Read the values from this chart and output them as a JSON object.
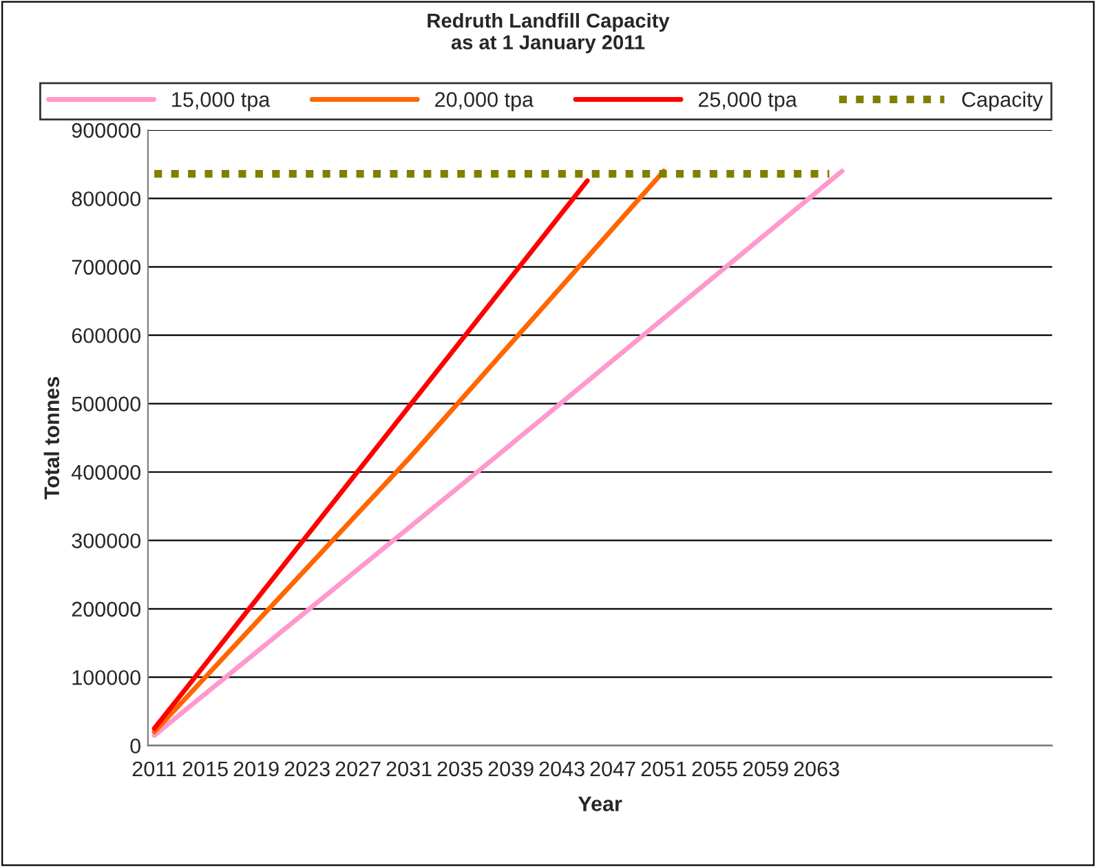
{
  "chart_data": {
    "type": "line",
    "title": "Redruth Landfill Capacity\nas at 1 January 2011",
    "xlabel": "Year",
    "ylabel": "Total tonnes",
    "series": [
      {
        "name": "15,000 tpa",
        "color": "#ff99cc",
        "x": [
          2011,
          2038,
          2065
        ],
        "values": [
          15000,
          425000,
          840000
        ]
      },
      {
        "name": "20,000 tpa",
        "color": "#ff6600",
        "x": [
          2011,
          2031,
          2051
        ],
        "values": [
          20000,
          420000,
          840000
        ]
      },
      {
        "name": "25,000 tpa",
        "color": "#ff0000",
        "x": [
          2011,
          2028,
          2045
        ],
        "values": [
          25000,
          425000,
          826000
        ]
      },
      {
        "name": "Capacity",
        "color": "#808000",
        "x": [
          2011,
          2064
        ],
        "values": [
          836000,
          836000
        ],
        "line_style": "dotted"
      }
    ],
    "xlim": [
      2010.5,
      2081.5
    ],
    "xticks": [
      2011,
      2015,
      2019,
      2023,
      2027,
      2031,
      2035,
      2039,
      2043,
      2047,
      2051,
      2055,
      2059,
      2063
    ],
    "ylim": [
      0,
      900000
    ],
    "yticks": [
      0,
      100000,
      200000,
      300000,
      400000,
      500000,
      600000,
      700000,
      800000,
      900000
    ],
    "grid": "y",
    "legend": "top",
    "marker": "none",
    "line_style": "solid"
  }
}
